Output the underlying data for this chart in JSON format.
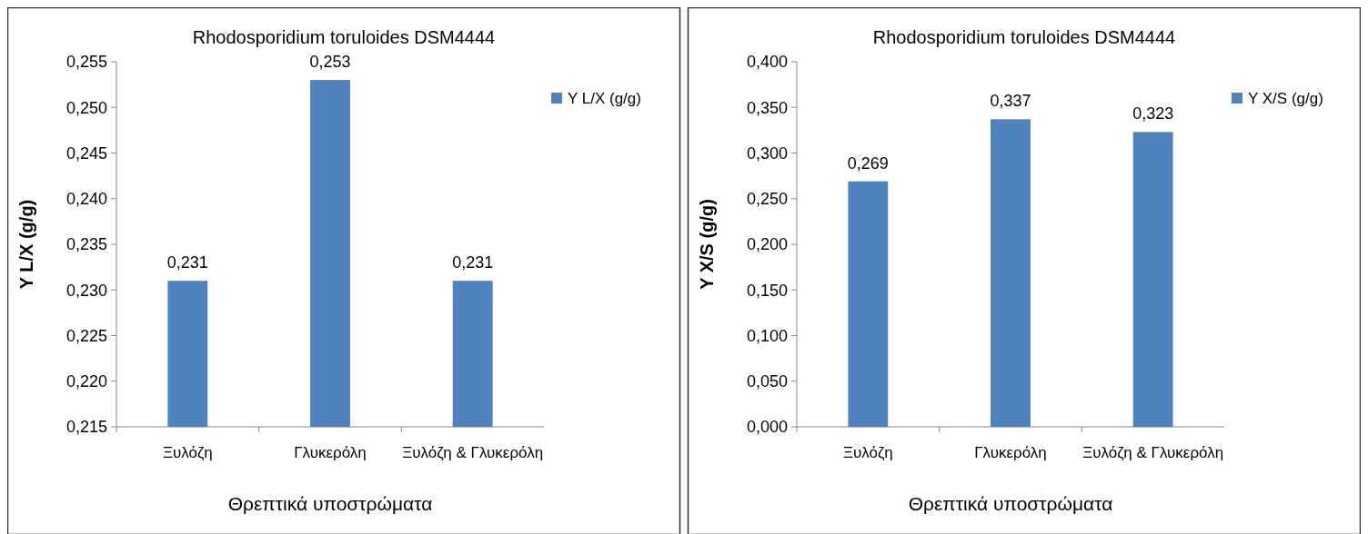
{
  "chart_data": [
    {
      "type": "bar",
      "title": "Rhodosporidium toruloides DSM4444",
      "xlabel": "Θρεπτικά υποστρώματα",
      "ylabel": "Y L/X (g/g)",
      "categories": [
        "Ξυλόζη",
        "Γλυκερόλη",
        "Ξυλόζη & Γλυκερόλη"
      ],
      "series": [
        {
          "name": "Y L/X (g/g)",
          "color": "#4f81bd",
          "values": [
            0.231,
            0.253,
            0.231
          ],
          "value_labels": [
            "0,231",
            "0,253",
            "0,231"
          ]
        }
      ],
      "ylim": [
        0.215,
        0.255
      ],
      "yticks": [
        {
          "value": 0.215,
          "label": "0,215"
        },
        {
          "value": 0.22,
          "label": "0,220"
        },
        {
          "value": 0.225,
          "label": "0,225"
        },
        {
          "value": 0.23,
          "label": "0,230"
        },
        {
          "value": 0.235,
          "label": "0,235"
        },
        {
          "value": 0.24,
          "label": "0,240"
        },
        {
          "value": 0.245,
          "label": "0,245"
        },
        {
          "value": 0.25,
          "label": "0,250"
        },
        {
          "value": 0.255,
          "label": "0,255"
        }
      ],
      "grid": false,
      "legend": "top right"
    },
    {
      "type": "bar",
      "title": "Rhodosporidium toruloides DSM4444",
      "xlabel": "Θρεπτικά υποστρώματα",
      "ylabel": "Y X/S (g/g)",
      "categories": [
        "Ξυλόζη",
        "Γλυκερόλη",
        "Ξυλόζη & Γλυκερόλη"
      ],
      "series": [
        {
          "name": "Y X/S (g/g)",
          "color": "#4f81bd",
          "values": [
            0.269,
            0.337,
            0.323
          ],
          "value_labels": [
            "0,269",
            "0,337",
            "0,323"
          ]
        }
      ],
      "ylim": [
        0,
        0.4
      ],
      "yticks": [
        {
          "value": 0,
          "label": "0,000"
        },
        {
          "value": 0.05,
          "label": "0,050"
        },
        {
          "value": 0.1,
          "label": "0,100"
        },
        {
          "value": 0.15,
          "label": "0,150"
        },
        {
          "value": 0.2,
          "label": "0,200"
        },
        {
          "value": 0.25,
          "label": "0,250"
        },
        {
          "value": 0.3,
          "label": "0,300"
        },
        {
          "value": 0.35,
          "label": "0,350"
        },
        {
          "value": 0.4,
          "label": "0,400"
        }
      ],
      "grid": false,
      "legend": "top right"
    }
  ]
}
